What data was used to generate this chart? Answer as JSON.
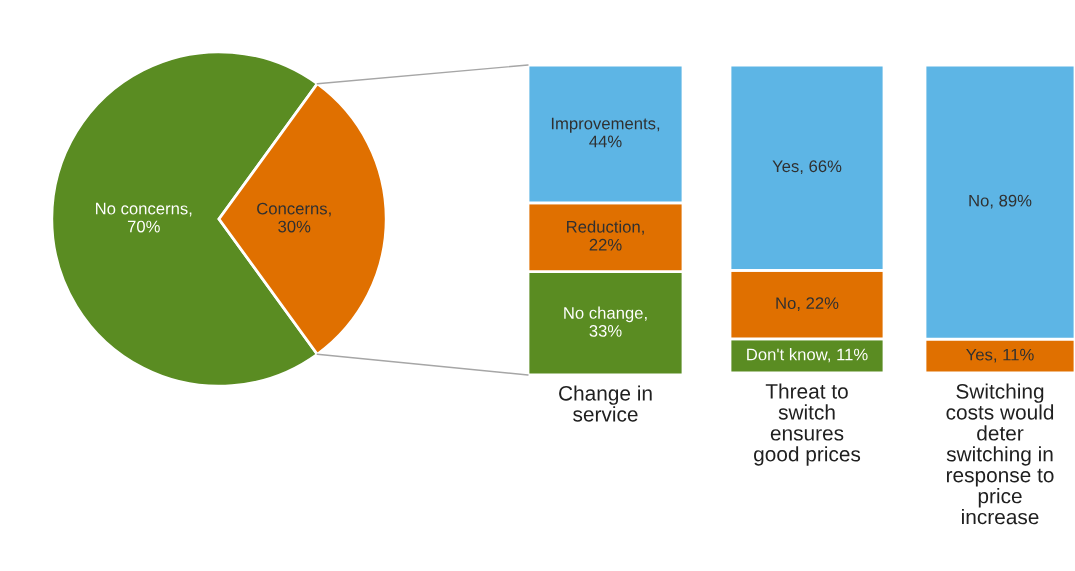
{
  "chart_data": [
    {
      "type": "pie",
      "categories": [
        null,
        null
      ],
      "values": [
        70,
        30
      ],
      "colors": [
        "#5a8c22",
        "#e07000"
      ],
      "value_labels": [
        "No concerns,\n70%",
        "Concerns,\n30%"
      ]
    },
    {
      "type": "bar",
      "stacked": true,
      "categories": [
        null
      ],
      "xlabel": "Change in\nservice",
      "series": [
        {
          "color": "#5a8c22",
          "values": [
            33
          ],
          "value_labels": [
            "No change,\n33%"
          ]
        },
        {
          "color": "#e07000",
          "values": [
            22
          ],
          "value_labels": [
            "Reduction,\n22%"
          ]
        },
        {
          "color": "#5db5e5",
          "values": [
            44
          ],
          "value_labels": [
            "Improvements,\n44%"
          ]
        }
      ]
    },
    {
      "type": "bar",
      "stacked": true,
      "categories": [
        null
      ],
      "xlabel": "Threat to\nswitch\nensures\ngood prices",
      "series": [
        {
          "color": "#5a8c22",
          "values": [
            11
          ],
          "value_labels": [
            "Don't know, 11%"
          ]
        },
        {
          "color": "#e07000",
          "values": [
            22
          ],
          "value_labels": [
            "No, 22%"
          ]
        },
        {
          "color": "#5db5e5",
          "values": [
            66
          ],
          "value_labels": [
            "Yes, 66%"
          ]
        }
      ]
    },
    {
      "type": "bar",
      "stacked": true,
      "categories": [
        null
      ],
      "xlabel": "Switching\ncosts would\ndeter\nswitching in\nresponse to\nprice\nincrease",
      "series": [
        {
          "color": "#e07000",
          "values": [
            11
          ],
          "value_labels": [
            "Yes, 11%"
          ]
        },
        {
          "color": "#5db5e5",
          "values": [
            89
          ],
          "value_labels": [
            "No, 89%"
          ]
        }
      ]
    }
  ]
}
